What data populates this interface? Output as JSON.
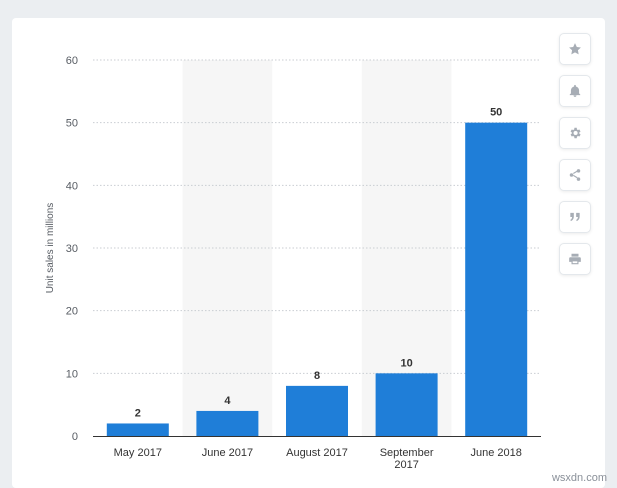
{
  "chart_data": {
    "type": "bar",
    "title": "",
    "xlabel": "",
    "ylabel": "Unit sales in millions",
    "ylim": [
      0,
      60
    ],
    "yticks": [
      0,
      10,
      20,
      30,
      40,
      50,
      60
    ],
    "grid": true,
    "categories": [
      "May 2017",
      "June 2017",
      "August 2017",
      "September 2017",
      "June 2018"
    ],
    "category_lines": [
      [
        "May 2017"
      ],
      [
        "June 2017"
      ],
      [
        "August 2017"
      ],
      [
        "September",
        "2017"
      ],
      [
        "June 2018"
      ]
    ],
    "values": [
      2,
      4,
      8,
      10,
      50
    ],
    "bar_color": "#1f7ed8",
    "alt_band_color": "#f6f6f6"
  },
  "toolbar": {
    "icons": [
      "star-icon",
      "bell-icon",
      "gear-icon",
      "share-icon",
      "quote-icon",
      "print-icon"
    ]
  },
  "watermark": "wsxdn.com"
}
